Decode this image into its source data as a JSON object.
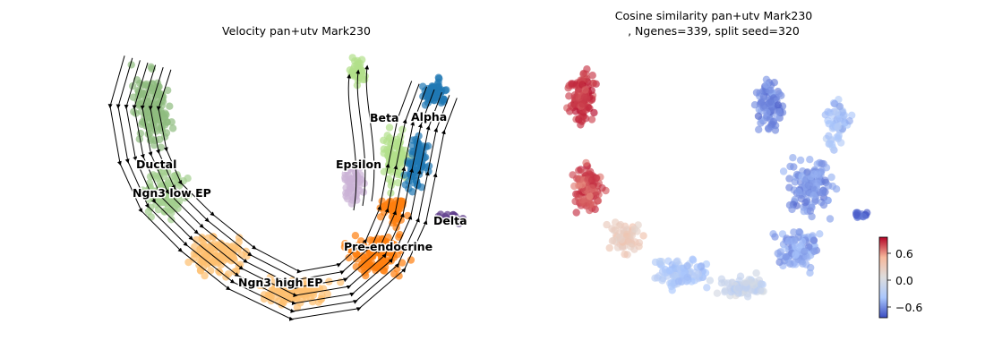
{
  "chart_data": [
    {
      "type": "scatter",
      "subtype": "umap-embedding-with-velocity-streamlines",
      "title": "Velocity pan+utv Mark230",
      "xlabel": "",
      "ylabel": "",
      "axes": "off",
      "grid": false,
      "legend": "on-data cluster labels",
      "clusters": [
        {
          "name": "Ductal",
          "color": "#8fbc7f"
        },
        {
          "name": "Ngn3 low EP",
          "color": "#a3cf8f"
        },
        {
          "name": "Ngn3 high EP",
          "color": "#fdbf6f"
        },
        {
          "name": "Pre-endocrine",
          "color": "#ff7f0e"
        },
        {
          "name": "Beta",
          "color": "#b2df8a"
        },
        {
          "name": "Alpha",
          "color": "#1f77b4"
        },
        {
          "name": "Delta",
          "color": "#5e3c8a"
        },
        {
          "name": "Epsilon",
          "color": "#cab2d6"
        }
      ],
      "streamline_color": "#000000"
    },
    {
      "type": "scatter",
      "subtype": "umap-embedding-colored-by-value",
      "title_line1": "Cosine similarity pan+utv Mark230",
      "title_line2": ", Ngenes=339, split seed=320",
      "xlabel": "",
      "ylabel": "",
      "axes": "off",
      "grid": false,
      "colormap": "coolwarm",
      "colorbar": {
        "placement": "right",
        "range": [
          -0.8,
          0.8
        ],
        "ticks": [
          0.6,
          0.0,
          -0.6
        ],
        "tick_labels": [
          "0.6",
          "0.0",
          "−0.6"
        ]
      }
    }
  ]
}
